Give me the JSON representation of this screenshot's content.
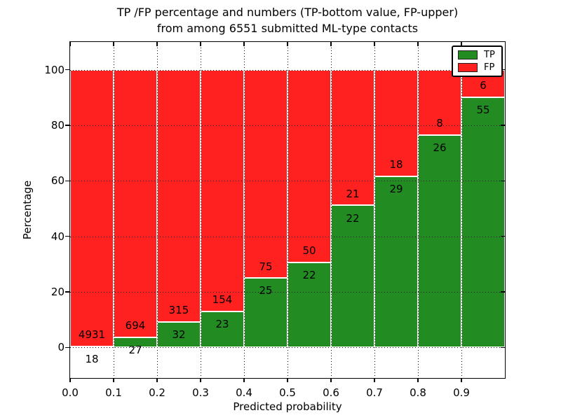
{
  "chart_data": {
    "type": "bar",
    "stacked": true,
    "normalized": "percent",
    "title": "TP /FP percentage and numbers (TP-bottom value, FP-upper)",
    "subtitle": "from among 6551 submitted ML-type contacts",
    "total_contacts": 6551,
    "xlabel": "Predicted probability",
    "ylabel": "Percentage",
    "bin_edges": [
      0.0,
      0.1,
      0.2,
      0.3,
      0.4,
      0.5,
      0.6,
      0.7,
      0.8,
      0.9,
      1.0
    ],
    "series": [
      {
        "name": "TP",
        "color": "#228B22",
        "counts": [
          18,
          27,
          32,
          23,
          25,
          22,
          22,
          29,
          26,
          55
        ]
      },
      {
        "name": "FP",
        "color": "#FF2020",
        "counts": [
          4931,
          694,
          315,
          154,
          75,
          50,
          21,
          18,
          8,
          6
        ]
      }
    ],
    "tp_percent": [
      0.36,
      3.74,
      9.22,
      12.99,
      25.0,
      30.56,
      51.16,
      61.7,
      76.47,
      90.16
    ],
    "xtick_labels": [
      "0.0",
      "0.1",
      "0.2",
      "0.3",
      "0.4",
      "0.5",
      "0.6",
      "0.7",
      "0.8",
      "0.9"
    ],
    "ytick_labels": [
      "0",
      "20",
      "40",
      "60",
      "80",
      "100"
    ],
    "ytick_values": [
      0,
      20,
      40,
      60,
      80,
      100
    ],
    "xlim": [
      0.0,
      1.0
    ],
    "ylim": [
      -11,
      110
    ],
    "grid": {
      "style": "dotted",
      "color": "#000000",
      "above_bars": true
    },
    "legend": {
      "position": "upper right",
      "entries": [
        "TP",
        "FP"
      ]
    },
    "axis_color": "#000000",
    "background_color": "#ffffff",
    "bar_edge_color": "#ffffff"
  }
}
